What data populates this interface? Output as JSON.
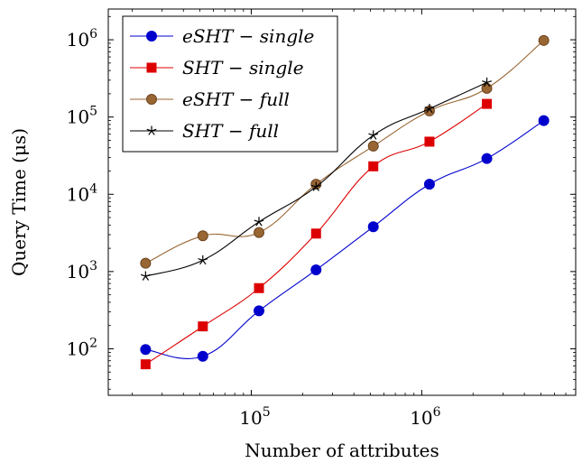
{
  "chart_data": {
    "type": "line",
    "title": "",
    "xlabel": "Number of attributes",
    "ylabel": "Query Time (μs)",
    "x_scale": "log",
    "y_scale": "log",
    "xlim": [
      14500,
      8000000
    ],
    "ylim": [
      25,
      2500000
    ],
    "x_ticks": [
      {
        "value": 100000,
        "base": "10",
        "exp": "5"
      },
      {
        "value": 1000000,
        "base": "10",
        "exp": "6"
      }
    ],
    "y_ticks": [
      {
        "value": 100,
        "base": "10",
        "exp": "2"
      },
      {
        "value": 1000,
        "base": "10",
        "exp": "3"
      },
      {
        "value": 10000,
        "base": "10",
        "exp": "4"
      },
      {
        "value": 100000,
        "base": "10",
        "exp": "5"
      },
      {
        "value": 1000000,
        "base": "10",
        "exp": "6"
      }
    ],
    "grid": false,
    "legend_position": "top-left",
    "series": [
      {
        "name": "eSHT − single",
        "color": "#0000cc",
        "marker": "circle",
        "x": [
          24000,
          52000,
          111000,
          240000,
          520000,
          1110000,
          2410000,
          5200000
        ],
        "values": [
          98,
          80,
          310,
          1050,
          3800,
          13500,
          29000,
          90000
        ]
      },
      {
        "name": "SHT − single",
        "color": "#dd0000",
        "marker": "square",
        "x": [
          24000,
          52000,
          111000,
          240000,
          520000,
          1110000,
          2410000
        ],
        "values": [
          63,
          195,
          610,
          3100,
          23000,
          48000,
          148000
        ]
      },
      {
        "name": "eSHT − full",
        "color": "#996633",
        "marker": "circle",
        "x": [
          24000,
          52000,
          111000,
          240000,
          520000,
          1110000,
          2410000,
          5200000
        ],
        "values": [
          1280,
          2900,
          3200,
          13500,
          42000,
          120000,
          235000,
          980000
        ]
      },
      {
        "name": "SHT − full",
        "color": "#000000",
        "marker": "star",
        "x": [
          24000,
          52000,
          111000,
          240000,
          520000,
          1110000,
          2410000
        ],
        "values": [
          870,
          1400,
          4400,
          12500,
          58000,
          128000,
          280000
        ]
      }
    ]
  }
}
